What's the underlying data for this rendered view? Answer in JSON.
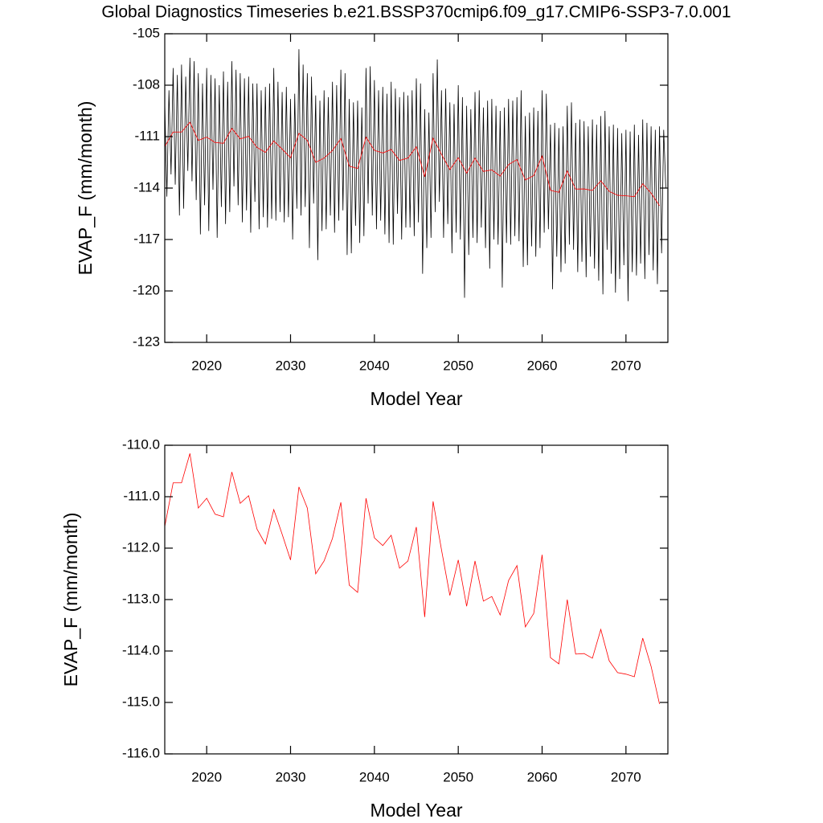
{
  "chart_data": [
    {
      "type": "line",
      "title": "Global Diagnostics Timeseries b.e21.BSSP370cmip6.f09_g17.CMIP6-SSP3-7.0.001",
      "xlabel": "Model Year",
      "ylabel": "EVAP_F (mm/month)",
      "xlim": [
        2015,
        2075
      ],
      "ylim": [
        -123,
        -105
      ],
      "xticks": [
        2020,
        2030,
        2040,
        2050,
        2060,
        2070
      ],
      "yticks": [
        -105,
        -108,
        -111,
        -114,
        -117,
        -120,
        -123
      ],
      "series": [
        {
          "color": "#000000",
          "x": [
            2015,
            2015.25,
            2015.5,
            2015.75,
            2016,
            2016.25,
            2016.5,
            2016.75,
            2017,
            2017.25,
            2017.5,
            2017.75,
            2018,
            2018.25,
            2018.5,
            2018.75,
            2019,
            2019.25,
            2019.5,
            2019.75,
            2020,
            2020.25,
            2020.5,
            2020.75,
            2021,
            2021.25,
            2021.5,
            2021.75,
            2022,
            2022.25,
            2022.5,
            2022.75,
            2023,
            2023.25,
            2023.5,
            2023.75,
            2024,
            2024.25,
            2024.5,
            2024.75,
            2025,
            2025.25,
            2025.5,
            2025.75,
            2026,
            2026.25,
            2026.5,
            2026.75,
            2027,
            2027.25,
            2027.5,
            2027.75,
            2028,
            2028.25,
            2028.5,
            2028.75,
            2029,
            2029.25,
            2029.5,
            2029.75,
            2030,
            2030.25,
            2030.5,
            2030.75,
            2031,
            2031.25,
            2031.5,
            2031.75,
            2032,
            2032.25,
            2032.5,
            2032.75,
            2033,
            2033.25,
            2033.5,
            2033.75,
            2034,
            2034.25,
            2034.5,
            2034.75,
            2035,
            2035.25,
            2035.5,
            2035.75,
            2036,
            2036.25,
            2036.5,
            2036.75,
            2037,
            2037.25,
            2037.5,
            2037.75,
            2038,
            2038.25,
            2038.5,
            2038.75,
            2039,
            2039.25,
            2039.5,
            2039.75,
            2040,
            2040.25,
            2040.5,
            2040.75,
            2041,
            2041.25,
            2041.5,
            2041.75,
            2042,
            2042.25,
            2042.5,
            2042.75,
            2043,
            2043.25,
            2043.5,
            2043.75,
            2044,
            2044.25,
            2044.5,
            2044.75,
            2045,
            2045.25,
            2045.5,
            2045.75,
            2046,
            2046.25,
            2046.5,
            2046.75,
            2047,
            2047.25,
            2047.5,
            2047.75,
            2048,
            2048.25,
            2048.5,
            2048.75,
            2049,
            2049.25,
            2049.5,
            2049.75,
            2050,
            2050.25,
            2050.5,
            2050.75,
            2051,
            2051.25,
            2051.5,
            2051.75,
            2052,
            2052.25,
            2052.5,
            2052.75,
            2053,
            2053.25,
            2053.5,
            2053.75,
            2054,
            2054.25,
            2054.5,
            2054.75,
            2055,
            2055.25,
            2055.5,
            2055.75,
            2056,
            2056.25,
            2056.5,
            2056.75,
            2057,
            2057.25,
            2057.5,
            2057.75,
            2058,
            2058.25,
            2058.5,
            2058.75,
            2059,
            2059.25,
            2059.5,
            2059.75,
            2060,
            2060.25,
            2060.5,
            2060.75,
            2061,
            2061.25,
            2061.5,
            2061.75,
            2062,
            2062.25,
            2062.5,
            2062.75,
            2063,
            2063.25,
            2063.5,
            2063.75,
            2064,
            2064.25,
            2064.5,
            2064.75,
            2065,
            2065.25,
            2065.5,
            2065.75,
            2066,
            2066.25,
            2066.5,
            2066.75,
            2067,
            2067.25,
            2067.5,
            2067.75,
            2068,
            2068.25,
            2068.5,
            2068.75,
            2069,
            2069.25,
            2069.5,
            2069.75,
            2070,
            2070.25,
            2070.5,
            2070.75,
            2071,
            2071.25,
            2071.5,
            2071.75,
            2072,
            2072.25,
            2072.5,
            2072.75,
            2073,
            2073.25,
            2073.5,
            2073.75,
            2074,
            2074.25,
            2074.5,
            2074.75
          ],
          "values": [
            -109.0,
            -114.5,
            -108.3,
            -113.2,
            -107.0,
            -113.8,
            -107.4,
            -115.6,
            -106.8,
            -115.2,
            -107.5,
            -113.0,
            -106.4,
            -113.6,
            -106.6,
            -114.7,
            -107.3,
            -116.7,
            -107.9,
            -115.0,
            -107.0,
            -116.5,
            -107.4,
            -114.1,
            -107.6,
            -116.9,
            -108.0,
            -115.1,
            -107.2,
            -116.1,
            -107.8,
            -115.4,
            -106.6,
            -113.9,
            -107.1,
            -115.0,
            -107.3,
            -116.0,
            -107.6,
            -115.3,
            -107.5,
            -116.6,
            -107.9,
            -114.8,
            -107.9,
            -116.4,
            -108.3,
            -115.7,
            -108.1,
            -116.3,
            -107.9,
            -115.8,
            -107.0,
            -115.9,
            -107.8,
            -115.4,
            -108.4,
            -116.0,
            -108.1,
            -115.7,
            -108.8,
            -117.0,
            -108.5,
            -115.2,
            -105.9,
            -115.6,
            -106.8,
            -115.1,
            -107.3,
            -117.5,
            -107.5,
            -114.9,
            -108.6,
            -118.2,
            -108.9,
            -116.5,
            -108.3,
            -116.4,
            -108.7,
            -115.6,
            -107.8,
            -116.6,
            -108.0,
            -115.9,
            -107.1,
            -115.3,
            -107.3,
            -117.9,
            -108.8,
            -117.8,
            -109.0,
            -116.2,
            -108.9,
            -117.2,
            -109.3,
            -116.8,
            -107.0,
            -114.9,
            -106.9,
            -115.6,
            -107.7,
            -116.4,
            -108.3,
            -115.9,
            -108.1,
            -116.7,
            -108.5,
            -117.2,
            -107.8,
            -117.3,
            -108.2,
            -115.5,
            -108.7,
            -117.0,
            -108.4,
            -116.3,
            -108.6,
            -116.3,
            -108.3,
            -116.8,
            -107.6,
            -116.0,
            -107.9,
            -119.0,
            -109.4,
            -117.5,
            -109.6,
            -116.9,
            -107.3,
            -115.4,
            -106.5,
            -114.8,
            -108.3,
            -116.9,
            -108.2,
            -116.1,
            -109.0,
            -117.8,
            -109.1,
            -116.6,
            -108.0,
            -117.0,
            -108.7,
            -120.4,
            -109.2,
            -117.9,
            -109.4,
            -116.9,
            -108.4,
            -117.2,
            -108.3,
            -116.3,
            -109.3,
            -117.5,
            -108.9,
            -118.7,
            -108.8,
            -117.0,
            -109.2,
            -117.3,
            -109.5,
            -119.8,
            -109.3,
            -117.2,
            -108.8,
            -117.3,
            -108.9,
            -116.8,
            -108.7,
            -117.1,
            -108.3,
            -118.6,
            -109.8,
            -118.5,
            -109.6,
            -117.4,
            -109.3,
            -118.0,
            -109.5,
            -117.5,
            -108.3,
            -116.6,
            -108.5,
            -116.4,
            -110.3,
            -119.9,
            -110.2,
            -118.0,
            -110.5,
            -118.9,
            -110.4,
            -118.4,
            -109.2,
            -117.3,
            -109.0,
            -117.6,
            -110.2,
            -118.9,
            -110.0,
            -118.3,
            -110.1,
            -119.2,
            -110.4,
            -118.0,
            -110.0,
            -118.7,
            -110.3,
            -119.4,
            -109.8,
            -120.2,
            -109.5,
            -117.6,
            -110.4,
            -119.0,
            -110.3,
            -120.1,
            -110.5,
            -119.3,
            -110.8,
            -118.5,
            -110.6,
            -120.6,
            -110.7,
            -118.9,
            -110.3,
            -119.1,
            -110.9,
            -118.4,
            -110.0,
            -119.3,
            -110.2,
            -117.9,
            -110.4,
            -118.8,
            -110.6,
            -119.6,
            -110.4,
            -117.8,
            -110.6,
            -114.0
          ]
        },
        {
          "color": "#ff0000",
          "x": [
            2015,
            2016,
            2017,
            2018,
            2019,
            2020,
            2021,
            2022,
            2023,
            2024,
            2025,
            2026,
            2027,
            2028,
            2029,
            2030,
            2031,
            2032,
            2033,
            2034,
            2035,
            2036,
            2037,
            2038,
            2039,
            2040,
            2041,
            2042,
            2043,
            2044,
            2045,
            2046,
            2047,
            2048,
            2049,
            2050,
            2051,
            2052,
            2053,
            2054,
            2055,
            2056,
            2057,
            2058,
            2059,
            2060,
            2061,
            2062,
            2063,
            2064,
            2065,
            2066,
            2067,
            2068,
            2069,
            2070,
            2071,
            2072,
            2073,
            2074
          ],
          "values": [
            -111.58,
            -110.73,
            -110.73,
            -110.16,
            -111.22,
            -111.03,
            -111.34,
            -111.39,
            -110.52,
            -111.13,
            -110.98,
            -111.63,
            -111.92,
            -111.25,
            -111.73,
            -112.23,
            -110.81,
            -111.22,
            -112.5,
            -112.25,
            -111.81,
            -111.11,
            -112.72,
            -112.86,
            -111.03,
            -111.8,
            -111.95,
            -111.75,
            -112.39,
            -112.25,
            -111.59,
            -113.34,
            -111.09,
            -112.03,
            -112.92,
            -112.23,
            -113.13,
            -112.25,
            -113.03,
            -112.94,
            -113.3,
            -112.63,
            -112.34,
            -113.53,
            -113.27,
            -112.13,
            -114.13,
            -114.25,
            -113.0,
            -114.06,
            -114.05,
            -114.14,
            -113.58,
            -114.19,
            -114.42,
            -114.45,
            -114.5,
            -113.75,
            -114.3,
            -115.03
          ]
        }
      ]
    },
    {
      "type": "line",
      "xlabel": "Model Year",
      "ylabel": "EVAP_F (mm/month)",
      "xlim": [
        2015,
        2075
      ],
      "ylim": [
        -116,
        -110
      ],
      "xticks": [
        2020,
        2030,
        2040,
        2050,
        2060,
        2070
      ],
      "yticks": [
        {
          "value": -110,
          "label": "-110.0"
        },
        {
          "value": -111,
          "label": "-111.0"
        },
        {
          "value": -112,
          "label": "-112.0"
        },
        {
          "value": -113,
          "label": "-113.0"
        },
        {
          "value": -114,
          "label": "-114.0"
        },
        {
          "value": -115,
          "label": "-115.0"
        },
        {
          "value": -116,
          "label": "-116.0"
        }
      ],
      "series": [
        {
          "color": "#ff0000",
          "x": [
            2015,
            2016,
            2017,
            2018,
            2019,
            2020,
            2021,
            2022,
            2023,
            2024,
            2025,
            2026,
            2027,
            2028,
            2029,
            2030,
            2031,
            2032,
            2033,
            2034,
            2035,
            2036,
            2037,
            2038,
            2039,
            2040,
            2041,
            2042,
            2043,
            2044,
            2045,
            2046,
            2047,
            2048,
            2049,
            2050,
            2051,
            2052,
            2053,
            2054,
            2055,
            2056,
            2057,
            2058,
            2059,
            2060,
            2061,
            2062,
            2063,
            2064,
            2065,
            2066,
            2067,
            2068,
            2069,
            2070,
            2071,
            2072,
            2073,
            2074
          ],
          "values": [
            -111.58,
            -110.73,
            -110.73,
            -110.16,
            -111.22,
            -111.03,
            -111.34,
            -111.39,
            -110.52,
            -111.13,
            -110.98,
            -111.63,
            -111.92,
            -111.25,
            -111.73,
            -112.23,
            -110.81,
            -111.22,
            -112.5,
            -112.25,
            -111.81,
            -111.11,
            -112.72,
            -112.86,
            -111.03,
            -111.8,
            -111.95,
            -111.75,
            -112.39,
            -112.25,
            -111.59,
            -113.34,
            -111.09,
            -112.03,
            -112.92,
            -112.23,
            -113.13,
            -112.25,
            -113.03,
            -112.94,
            -113.3,
            -112.63,
            -112.34,
            -113.53,
            -113.27,
            -112.13,
            -114.13,
            -114.25,
            -113.0,
            -114.06,
            -114.05,
            -114.14,
            -113.58,
            -114.19,
            -114.42,
            -114.45,
            -114.5,
            -113.75,
            -114.3,
            -115.03
          ]
        }
      ]
    }
  ]
}
